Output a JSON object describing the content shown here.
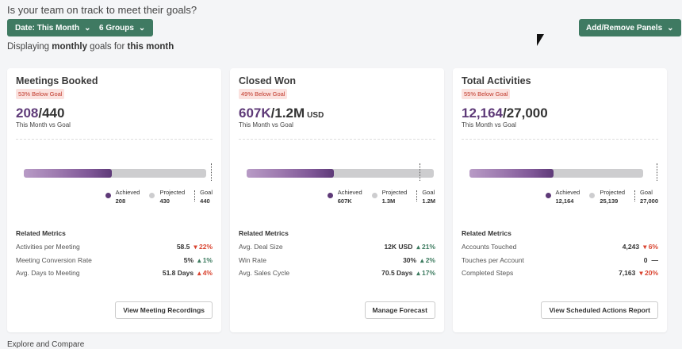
{
  "header": {
    "question": "Is your team on track to meet their goals?",
    "date_filter": "Date: This Month",
    "groups_filter": "6 Groups",
    "add_remove": "Add/Remove Panels",
    "displaying_pre": "Displaying ",
    "displaying_period": "monthly",
    "displaying_mid": " goals for ",
    "displaying_range": "this month"
  },
  "colors": {
    "accent": "#3f7a62",
    "achieved": "#5e3a78",
    "projected": "#cdcdcf",
    "down": "#d9432f",
    "up_good": "#3b7a5e"
  },
  "cards": [
    {
      "title": "Meetings Booked",
      "badge": "53% Below Goal",
      "achieved_text": "208",
      "goal_text": "/440",
      "unit": "",
      "sub": "This Month vs Goal",
      "achieved": 208,
      "projected": 430,
      "goal": 440,
      "legend": {
        "achieved_label": "Achieved",
        "achieved": "208",
        "projected_label": "Projected",
        "projected": "430",
        "goal_label": "Goal",
        "goal": "440"
      },
      "related_title": "Related Metrics",
      "metrics": [
        {
          "label": "Activities per Meeting",
          "value": "58.5",
          "change": "▾ 22%",
          "color": "#d9432f"
        },
        {
          "label": "Meeting Conversion Rate",
          "value": "5%",
          "change": "▴ 1%",
          "color": "#3b7a5e"
        },
        {
          "label": "Avg. Days to Meeting",
          "value": "51.8 Days",
          "change": "▴ 4%",
          "color": "#d9432f"
        }
      ],
      "action": "View Meeting Recordings"
    },
    {
      "title": "Closed Won",
      "badge": "49% Below Goal",
      "achieved_text": "607K",
      "goal_text": "/1.2M",
      "unit": "USD",
      "sub": "This Month vs Goal",
      "achieved": 607,
      "projected": 1300,
      "goal": 1200,
      "legend": {
        "achieved_label": "Achieved",
        "achieved": "607K",
        "projected_label": "Projected",
        "projected": "1.3M",
        "goal_label": "Goal",
        "goal": "1.2M"
      },
      "related_title": "Related Metrics",
      "metrics": [
        {
          "label": "Avg. Deal Size",
          "value": "12K USD",
          "change": "▴ 21%",
          "color": "#3b7a5e"
        },
        {
          "label": "Win Rate",
          "value": "30%",
          "change": "▴ 2%",
          "color": "#3b7a5e"
        },
        {
          "label": "Avg. Sales Cycle",
          "value": "70.5 Days",
          "change": "▴ 17%",
          "color": "#3b7a5e"
        }
      ],
      "action": "Manage Forecast"
    },
    {
      "title": "Total Activities",
      "badge": "55% Below Goal",
      "achieved_text": "12,164",
      "goal_text": "/27,000",
      "unit": "",
      "sub": "This Month vs Goal",
      "achieved": 12164,
      "projected": 25139,
      "goal": 27000,
      "legend": {
        "achieved_label": "Achieved",
        "achieved": "12,164",
        "projected_label": "Projected",
        "projected": "25,139",
        "goal_label": "Goal",
        "goal": "27,000"
      },
      "related_title": "Related Metrics",
      "metrics": [
        {
          "label": "Accounts Touched",
          "value": "4,243",
          "change": "▾ 6%",
          "color": "#d9432f"
        },
        {
          "label": "Touches per Account",
          "value": "0",
          "change": "—",
          "color": "#333333"
        },
        {
          "label": "Completed Steps",
          "value": "7,163",
          "change": "▾ 20%",
          "color": "#d9432f"
        }
      ],
      "action": "View Scheduled Actions Report"
    }
  ],
  "footer": {
    "section": "Explore and Compare"
  }
}
